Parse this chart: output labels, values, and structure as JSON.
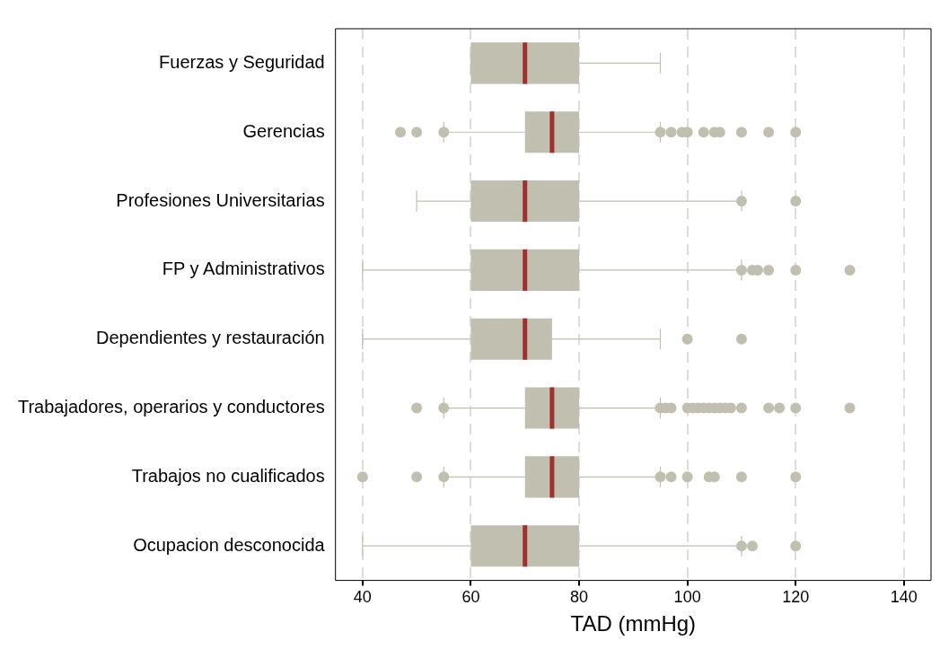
{
  "chart_data": {
    "type": "box",
    "orientation": "horizontal",
    "xlabel": "TAD (mmHg)",
    "categories": [
      "Fuerzas y Seguridad",
      "Gerencias",
      "Profesiones Universitarias",
      "FP y Administrativos",
      "Dependientes y restauración",
      "Trabajadores, operarios y conductores",
      "Trabajos no cualificados",
      "Ocupacion desconocida"
    ],
    "series": [
      {
        "color": "#c0bfb0",
        "boxes": [
          {
            "low": 60,
            "q1": 60,
            "median": 70,
            "q3": 80,
            "high": 95
          },
          {
            "low": 55,
            "q1": 70,
            "median": 75,
            "q3": 80,
            "high": 95,
            "outliers": [
              47,
              50,
              55,
              95,
              97,
              99,
              100,
              103,
              105,
              106,
              110,
              115,
              120
            ]
          },
          {
            "low": 50,
            "q1": 60,
            "median": 70,
            "q3": 80,
            "high": 110,
            "outliers": [
              110,
              120
            ]
          },
          {
            "low": 40,
            "q1": 60,
            "median": 70,
            "q3": 80,
            "high": 110,
            "outliers": [
              110,
              112,
              113,
              115,
              120,
              130
            ]
          },
          {
            "low": 40,
            "q1": 60,
            "median": 70,
            "q3": 75,
            "high": 95,
            "outliers": [
              100,
              110
            ]
          },
          {
            "low": 55,
            "q1": 70,
            "median": 75,
            "q3": 80,
            "high": 95,
            "outliers": [
              50,
              55,
              95,
              96,
              97,
              100,
              101,
              102,
              103,
              104,
              105,
              106,
              107,
              108,
              110,
              115,
              117,
              120,
              130
            ]
          },
          {
            "low": 55,
            "q1": 70,
            "median": 75,
            "q3": 80,
            "high": 95,
            "outliers": [
              40,
              50,
              55,
              95,
              97,
              100,
              104,
              105,
              110,
              120
            ]
          },
          {
            "low": 40,
            "q1": 60,
            "median": 70,
            "q3": 80,
            "high": 110,
            "outliers": [
              110,
              112,
              120
            ]
          }
        ]
      }
    ],
    "xlim": [
      35,
      145
    ],
    "xticks": [
      40,
      60,
      80,
      100,
      120,
      140
    ],
    "grid": "x"
  }
}
